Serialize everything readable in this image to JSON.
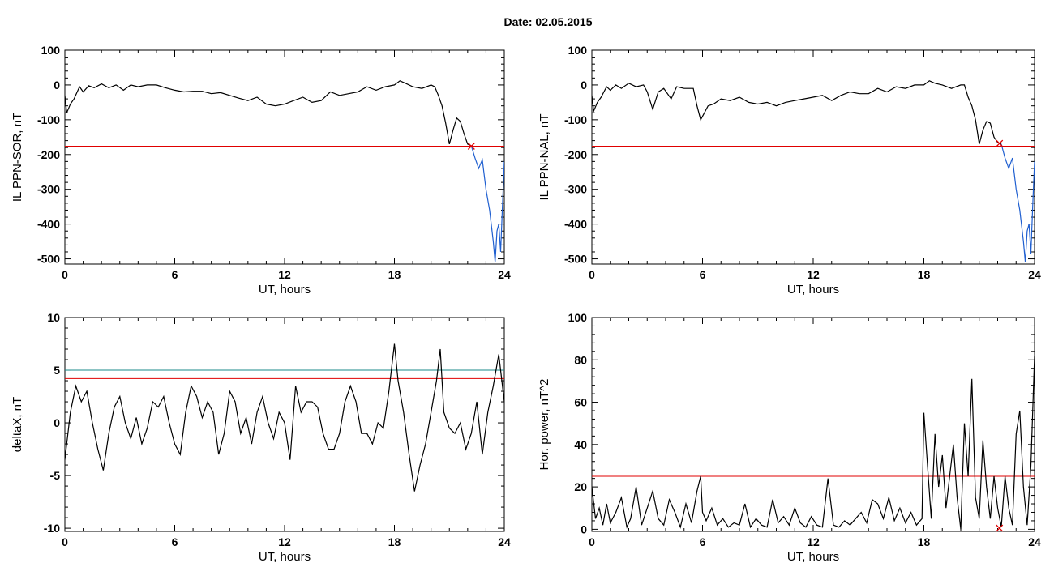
{
  "header": {
    "date_label": "Date:",
    "date_value": "02.05.2015"
  },
  "colors": {
    "trace": "#000000",
    "threshold": "#e00000",
    "marker": "#e00000",
    "highlight": "#1f5fd0",
    "upper_threshold": "#1a8a8a"
  },
  "chart_data": [
    {
      "id": "il-sor",
      "type": "line",
      "title": "",
      "xlabel": "UT, hours",
      "ylabel": "IL PPN-SOR, nT",
      "xlim": [
        0,
        24
      ],
      "ylim": [
        -515,
        100
      ],
      "xticks": [
        0,
        6,
        12,
        18,
        24
      ],
      "yticks": [
        100,
        0,
        -100,
        -200,
        -300,
        -400,
        -500
      ],
      "grid": false,
      "series": [
        {
          "x": [
            0,
            0.1,
            0.3,
            0.5,
            0.8,
            1.0,
            1.3,
            1.6,
            2.0,
            2.4,
            2.8,
            3.2,
            3.6,
            4.0,
            4.5,
            5.0,
            5.5,
            6.0,
            6.5,
            7.0,
            7.5,
            8.0,
            8.5,
            9.0,
            9.5,
            10.0,
            10.5,
            11.0,
            11.5,
            12.0,
            12.5,
            13.0,
            13.5,
            14.0,
            14.5,
            15.0,
            15.5,
            16.0,
            16.5,
            17.0,
            17.5,
            18.0,
            18.3,
            18.6,
            19.0,
            19.5,
            20.0,
            20.2,
            20.4,
            20.6,
            20.8,
            21.0,
            21.2,
            21.4,
            21.6,
            21.8,
            22.0,
            22.2
          ],
          "y": [
            -30,
            -80,
            -55,
            -40,
            -5,
            -20,
            -2,
            -8,
            3,
            -8,
            0,
            -15,
            0,
            -5,
            0,
            0,
            -8,
            -15,
            -20,
            -18,
            -18,
            -25,
            -22,
            -30,
            -38,
            -45,
            -35,
            -55,
            -60,
            -55,
            -45,
            -35,
            -50,
            -45,
            -20,
            -30,
            -25,
            -20,
            -5,
            -15,
            -5,
            0,
            12,
            5,
            -5,
            -10,
            0,
            -5,
            -30,
            -60,
            -110,
            -170,
            -130,
            -95,
            -105,
            -140,
            -170,
            -175
          ]
        },
        {
          "x": [
            22.2,
            22.4,
            22.6,
            22.8,
            23.0,
            23.2,
            23.4,
            23.5,
            23.6,
            23.7,
            23.8,
            23.9,
            24.0
          ],
          "y": [
            -175,
            -210,
            -240,
            -215,
            -300,
            -360,
            -450,
            -510,
            -420,
            -400,
            -480,
            -350,
            -220
          ]
        }
      ],
      "threshold": -176,
      "marker": {
        "x": 22.2,
        "y": -176
      }
    },
    {
      "id": "il-nal",
      "type": "line",
      "title": "",
      "xlabel": "UT, hours",
      "ylabel": "IL PPN-NAL, nT",
      "xlim": [
        0,
        24
      ],
      "ylim": [
        -515,
        100
      ],
      "xticks": [
        0,
        6,
        12,
        18,
        24
      ],
      "yticks": [
        100,
        0,
        -100,
        -200,
        -300,
        -400,
        -500
      ],
      "grid": false,
      "series": [
        {
          "x": [
            0,
            0.1,
            0.3,
            0.5,
            0.8,
            1.0,
            1.3,
            1.6,
            2.0,
            2.4,
            2.8,
            3.0,
            3.3,
            3.6,
            3.9,
            4.3,
            4.6,
            5.0,
            5.5,
            5.7,
            5.9,
            6.1,
            6.3,
            6.6,
            7.0,
            7.5,
            8.0,
            8.5,
            9.0,
            9.5,
            10.0,
            10.5,
            11.0,
            11.5,
            12.0,
            12.5,
            13.0,
            13.5,
            14.0,
            14.5,
            15.0,
            15.5,
            16.0,
            16.5,
            17.0,
            17.5,
            18.0,
            18.3,
            18.6,
            19.0,
            19.5,
            20.0,
            20.2,
            20.4,
            20.6,
            20.8,
            21.0,
            21.2,
            21.4,
            21.6,
            21.8,
            22.0,
            22.2
          ],
          "y": [
            -30,
            -75,
            -50,
            -35,
            -5,
            -15,
            0,
            -10,
            5,
            -5,
            0,
            -20,
            -70,
            -20,
            -10,
            -40,
            -5,
            -10,
            -10,
            -60,
            -100,
            -80,
            -60,
            -55,
            -40,
            -45,
            -35,
            -50,
            -55,
            -50,
            -60,
            -50,
            -45,
            -40,
            -35,
            -30,
            -45,
            -30,
            -20,
            -25,
            -25,
            -10,
            -20,
            -5,
            -10,
            0,
            0,
            12,
            5,
            0,
            -10,
            0,
            0,
            -35,
            -60,
            -100,
            -170,
            -130,
            -105,
            -110,
            -150,
            -165,
            -170
          ]
        },
        {
          "x": [
            22.2,
            22.4,
            22.6,
            22.8,
            23.0,
            23.2,
            23.4,
            23.5,
            23.6,
            23.7,
            23.8,
            23.9,
            24.0
          ],
          "y": [
            -170,
            -210,
            -240,
            -210,
            -300,
            -360,
            -450,
            -510,
            -420,
            -400,
            -485,
            -350,
            -220
          ]
        }
      ],
      "threshold": -176,
      "marker": {
        "x": 22.1,
        "y": -168
      }
    },
    {
      "id": "deltax",
      "type": "line",
      "title": "",
      "xlabel": "UT, hours",
      "ylabel": "deltaX, nT",
      "xlim": [
        0,
        24
      ],
      "ylim": [
        -10.3,
        10
      ],
      "xticks": [
        0,
        6,
        12,
        18,
        24
      ],
      "yticks": [
        10,
        5,
        0,
        -5,
        -10
      ],
      "grid": false,
      "series": [
        {
          "x": [
            0,
            0.3,
            0.6,
            0.9,
            1.2,
            1.5,
            1.8,
            2.1,
            2.4,
            2.7,
            3.0,
            3.3,
            3.6,
            3.9,
            4.2,
            4.5,
            4.8,
            5.1,
            5.4,
            5.7,
            6.0,
            6.3,
            6.6,
            6.9,
            7.2,
            7.5,
            7.8,
            8.1,
            8.4,
            8.7,
            9.0,
            9.3,
            9.6,
            9.9,
            10.2,
            10.5,
            10.8,
            11.1,
            11.4,
            11.7,
            12.0,
            12.3,
            12.6,
            12.9,
            13.2,
            13.5,
            13.8,
            14.1,
            14.4,
            14.7,
            15.0,
            15.3,
            15.6,
            15.9,
            16.2,
            16.5,
            16.8,
            17.1,
            17.4,
            17.7,
            18.0,
            18.2,
            18.5,
            18.8,
            19.1,
            19.4,
            19.7,
            20.0,
            20.3,
            20.5,
            20.7,
            21.0,
            21.3,
            21.6,
            21.9,
            22.2,
            22.5,
            22.8,
            23.1,
            23.4,
            23.7,
            24.0
          ],
          "y": [
            -3.5,
            1,
            3.5,
            2,
            3,
            0,
            -2.5,
            -4.5,
            -1,
            1.5,
            2.5,
            0,
            -1.5,
            0.5,
            -2,
            -0.5,
            2,
            1.5,
            2.5,
            0,
            -2,
            -3,
            1,
            3.5,
            2.5,
            0.5,
            2,
            1,
            -3,
            -1,
            3,
            2,
            -1,
            0.5,
            -2,
            1,
            2.5,
            0,
            -1.5,
            1,
            0,
            -3.5,
            3.5,
            1,
            2,
            2,
            1.5,
            -1,
            -2.5,
            -2.5,
            -1,
            2,
            3.5,
            2,
            -1,
            -1,
            -2,
            0,
            -0.5,
            3,
            7.5,
            4,
            1,
            -3,
            -6.5,
            -4,
            -2,
            1,
            4,
            7,
            1,
            -0.5,
            -1,
            0,
            -2.5,
            -1,
            2,
            -3,
            1,
            3.5,
            6.5,
            2
          ]
        }
      ],
      "thresholds": [
        4.2,
        5
      ]
    },
    {
      "id": "hor-power",
      "type": "line",
      "title": "",
      "xlabel": "UT, hours",
      "ylabel": "Hor. power, nT^2",
      "xlim": [
        0,
        24
      ],
      "ylim": [
        -1,
        100
      ],
      "xticks": [
        0,
        6,
        12,
        18,
        24
      ],
      "yticks": [
        100,
        80,
        60,
        40,
        20,
        0
      ],
      "grid": false,
      "series": [
        {
          "x": [
            0,
            0.2,
            0.4,
            0.6,
            0.8,
            1.0,
            1.3,
            1.6,
            1.9,
            2.1,
            2.4,
            2.7,
            3.0,
            3.3,
            3.6,
            3.9,
            4.2,
            4.5,
            4.8,
            5.1,
            5.4,
            5.7,
            5.9,
            6.0,
            6.2,
            6.5,
            6.8,
            7.1,
            7.4,
            7.7,
            8.0,
            8.3,
            8.6,
            8.9,
            9.2,
            9.5,
            9.8,
            10.1,
            10.4,
            10.7,
            11.0,
            11.3,
            11.6,
            11.9,
            12.2,
            12.5,
            12.8,
            13.1,
            13.4,
            13.7,
            14.0,
            14.3,
            14.6,
            14.9,
            15.2,
            15.5,
            15.8,
            16.1,
            16.4,
            16.7,
            17.0,
            17.3,
            17.6,
            17.9,
            18.0,
            18.2,
            18.4,
            18.6,
            18.8,
            19.0,
            19.2,
            19.4,
            19.6,
            19.8,
            20.0,
            20.2,
            20.4,
            20.6,
            20.8,
            21.0,
            21.2,
            21.4,
            21.6,
            21.8,
            22.0,
            22.2,
            22.4,
            22.6,
            22.8,
            23.0,
            23.2,
            23.4,
            23.6,
            23.8,
            24.0
          ],
          "y": [
            20,
            5,
            10,
            2,
            12,
            3,
            8,
            15,
            1,
            5,
            20,
            2,
            10,
            18,
            5,
            2,
            14,
            8,
            1,
            12,
            3,
            18,
            25,
            8,
            4,
            10,
            2,
            5,
            1,
            3,
            2,
            12,
            1,
            5,
            2,
            1,
            14,
            3,
            6,
            2,
            10,
            3,
            1,
            6,
            2,
            1,
            24,
            2,
            1,
            4,
            2,
            5,
            8,
            3,
            14,
            12,
            5,
            15,
            4,
            10,
            3,
            8,
            2,
            5,
            55,
            30,
            5,
            45,
            20,
            35,
            10,
            25,
            40,
            15,
            0,
            50,
            25,
            71,
            15,
            5,
            42,
            20,
            5,
            25,
            10,
            1,
            25,
            10,
            2,
            45,
            56,
            20,
            2,
            30,
            82
          ]
        }
      ],
      "threshold": 25,
      "marker": {
        "x": 22.1,
        "y": 0.5
      }
    }
  ]
}
